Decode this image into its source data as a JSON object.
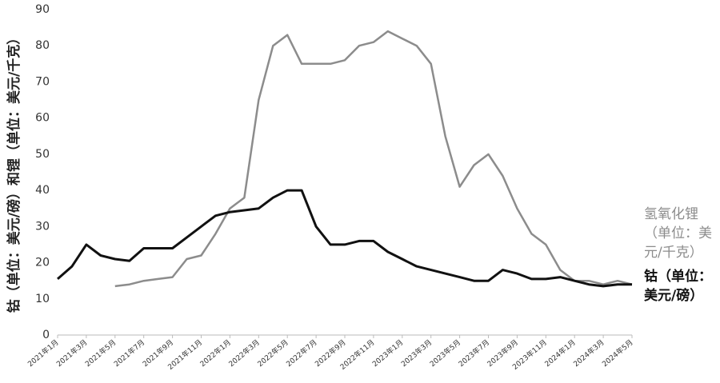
{
  "chart_data": {
    "type": "line",
    "y_label": "钴（单位：美元/磅）和锂（单位：美元/千克）",
    "categories": [
      "2021年1月",
      null,
      "2021年3月",
      null,
      "2021年5月",
      null,
      "2021年7月",
      null,
      "2021年9月",
      null,
      "2021年11月",
      null,
      "2022年1月",
      null,
      "2022年3月",
      null,
      "2022年5月",
      null,
      "2022年7月",
      null,
      "2022年9月",
      null,
      "2022年11月",
      null,
      "2023年1月",
      null,
      "2023年3月",
      null,
      "2023年5月",
      null,
      "2023年7月",
      null,
      "2023年9月",
      null,
      "2023年11月",
      null,
      "2024年1月",
      null,
      "2024年3月",
      null,
      "2024年5月"
    ],
    "series": [
      {
        "name": "氢氧化锂（单位：美元/千克）",
        "color": "#8c8c8c",
        "values": [
          null,
          null,
          null,
          null,
          13.5,
          14,
          15,
          15.5,
          16,
          21,
          22,
          28,
          35,
          38,
          65,
          80,
          83,
          75,
          75,
          75,
          76,
          80,
          81,
          84,
          82,
          80,
          75,
          55,
          41,
          47,
          50,
          44,
          35,
          28,
          25,
          18,
          15,
          15,
          14,
          15,
          14
        ]
      },
      {
        "name": "钴（单位：美元/磅）",
        "color": "#111111",
        "values": [
          15.5,
          19,
          25,
          22,
          21,
          20.5,
          24,
          24,
          24,
          27,
          30,
          33,
          34,
          34.5,
          35,
          38,
          40,
          40,
          30,
          25,
          25,
          26,
          26,
          23,
          21,
          19,
          18,
          17,
          16,
          15,
          15,
          18,
          17,
          15.5,
          15.5,
          16,
          15,
          14,
          13.5,
          14,
          14
        ]
      }
    ],
    "ylim": [
      0,
      90
    ],
    "yticks": [
      0,
      10,
      20,
      30,
      40,
      50,
      60,
      70,
      80,
      90
    ],
    "grid": false
  }
}
